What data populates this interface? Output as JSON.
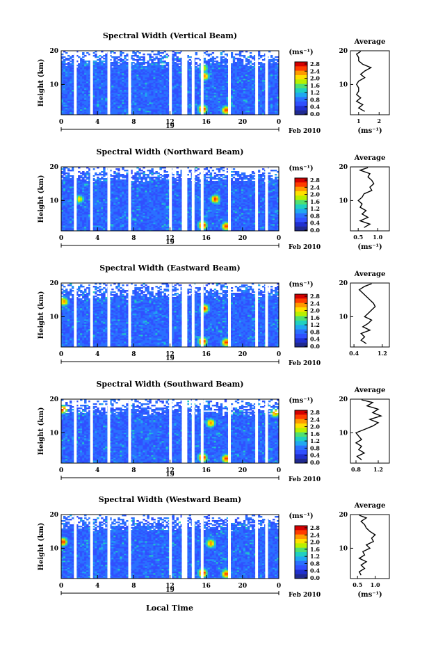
{
  "figure": {
    "xlabel": "Local Time",
    "date_label": "Feb 2010",
    "day_label": "19",
    "colorbar_unit": "(ms⁻¹)",
    "colorbar_ticks": [
      "2.8",
      "2.4",
      "2.0",
      "1.6",
      "1.2",
      "0.8",
      "0.4",
      "0.0"
    ],
    "colorbar_colors": [
      "#d40000",
      "#ff3c00",
      "#ff9a00",
      "#ffe000",
      "#b8f000",
      "#50e070",
      "#20d0c0",
      "#20a8f0",
      "#2a70ff",
      "#3050ff",
      "#2030d0",
      "#202a90"
    ],
    "average_title": "Average",
    "average_xunit": "(ms⁻¹)"
  },
  "chart_data": [
    {
      "type": "heatmap",
      "title": "Spectral Width (Vertical Beam)",
      "ylabel": "Height (km)",
      "xlabel": "Local Time",
      "x_ticks": [
        "0",
        "4",
        "8",
        "12",
        "16",
        "20",
        "0"
      ],
      "y_ticks": [
        "20",
        "10"
      ],
      "xlim": [
        0,
        24
      ],
      "ylim": [
        1,
        20
      ],
      "colorbar": {
        "unit": "(ms⁻¹)",
        "range": [
          0.0,
          2.8
        ]
      },
      "gaps_hours": [
        1.4,
        3.2,
        5.1,
        7.4,
        11.9,
        13.3,
        13.6,
        14.4,
        15.4,
        18.4,
        21.4,
        22.5
      ],
      "hotspots": [
        {
          "t": 15.6,
          "h": 2.7,
          "level": 2.8
        },
        {
          "t": 18.2,
          "h": 2.4,
          "level": 2.6
        },
        {
          "t": 15.8,
          "h": 12.5,
          "level": 2.4
        },
        {
          "t": 15.7,
          "h": 15.0,
          "level": 2.0
        }
      ]
    },
    {
      "type": "line",
      "title": "Average",
      "xlabel": "(ms⁻¹)",
      "x_ticks": [
        "1",
        "2"
      ],
      "y_ticks": [
        "20",
        "10"
      ],
      "xlim": [
        0.6,
        2.5
      ],
      "ylim": [
        1,
        20
      ],
      "series": [
        {
          "values": [
            [
              1.3,
              2
            ],
            [
              1.0,
              3
            ],
            [
              1.2,
              4
            ],
            [
              0.9,
              5
            ],
            [
              1.1,
              6
            ],
            [
              0.9,
              7
            ],
            [
              1.0,
              8
            ],
            [
              1.0,
              9
            ],
            [
              0.9,
              10
            ],
            [
              1.0,
              11
            ],
            [
              1.3,
              12
            ],
            [
              1.1,
              13
            ],
            [
              1.3,
              14
            ],
            [
              1.6,
              15
            ],
            [
              1.2,
              16
            ],
            [
              1.0,
              17
            ],
            [
              1.0,
              18
            ],
            [
              0.9,
              19
            ],
            [
              1.1,
              19.8
            ]
          ]
        }
      ]
    },
    {
      "type": "heatmap",
      "title": "Spectral Width (Northward Beam)",
      "ylabel": "Height (km)",
      "xlabel": "Local Time",
      "x_ticks": [
        "0",
        "4",
        "8",
        "12",
        "16",
        "20",
        "0"
      ],
      "y_ticks": [
        "20",
        "10"
      ],
      "xlim": [
        0,
        24
      ],
      "ylim": [
        1,
        20
      ],
      "colorbar": {
        "unit": "(ms⁻¹)",
        "range": [
          0.0,
          2.8
        ]
      },
      "gaps_hours": [
        1.4,
        3.2,
        5.1,
        7.4,
        11.9,
        13.3,
        13.6,
        14.4,
        15.4,
        18.4,
        21.4,
        22.5
      ],
      "hotspots": [
        {
          "t": 15.6,
          "h": 2.7,
          "level": 2.8
        },
        {
          "t": 18.2,
          "h": 2.4,
          "level": 2.6
        },
        {
          "t": 17.0,
          "h": 10.5,
          "level": 2.6
        },
        {
          "t": 2.0,
          "h": 10.5,
          "level": 2.0
        }
      ]
    },
    {
      "type": "line",
      "title": "Average",
      "xlabel": "(ms⁻¹)",
      "x_ticks": [
        "0.5",
        "1.0"
      ],
      "y_ticks": [
        "20",
        "10"
      ],
      "xlim": [
        0.3,
        1.3
      ],
      "ylim": [
        1,
        20
      ],
      "series": [
        {
          "values": [
            [
              0.65,
              2
            ],
            [
              0.8,
              3
            ],
            [
              0.55,
              4
            ],
            [
              0.75,
              5
            ],
            [
              0.6,
              6
            ],
            [
              0.7,
              7
            ],
            [
              0.55,
              8
            ],
            [
              0.6,
              9
            ],
            [
              0.5,
              10
            ],
            [
              0.6,
              11
            ],
            [
              0.65,
              12
            ],
            [
              0.85,
              13
            ],
            [
              0.8,
              14
            ],
            [
              0.9,
              15
            ],
            [
              0.85,
              16
            ],
            [
              0.75,
              17
            ],
            [
              0.8,
              18
            ],
            [
              0.55,
              19
            ],
            [
              0.75,
              19.8
            ]
          ]
        }
      ]
    },
    {
      "type": "heatmap",
      "title": "Spectral Width (Eastward Beam)",
      "ylabel": "Height (km)",
      "xlabel": "Local Time",
      "x_ticks": [
        "0",
        "4",
        "8",
        "12",
        "16",
        "20",
        "0"
      ],
      "y_ticks": [
        "20",
        "10"
      ],
      "xlim": [
        0,
        24
      ],
      "ylim": [
        1,
        20
      ],
      "colorbar": {
        "unit": "(ms⁻¹)",
        "range": [
          0.0,
          2.8
        ]
      },
      "gaps_hours": [
        1.4,
        3.2,
        5.1,
        7.4,
        11.9,
        13.3,
        13.6,
        14.4,
        15.4,
        18.4,
        21.4,
        22.5
      ],
      "hotspots": [
        {
          "t": 15.6,
          "h": 2.7,
          "level": 2.8
        },
        {
          "t": 18.2,
          "h": 2.4,
          "level": 2.6
        },
        {
          "t": 15.8,
          "h": 12.5,
          "level": 2.6
        },
        {
          "t": 0.3,
          "h": 14.5,
          "level": 2.4
        }
      ]
    },
    {
      "type": "line",
      "title": "Average",
      "xlabel": "",
      "x_ticks": [
        "0.4",
        "1.2"
      ],
      "y_ticks": [
        "20",
        "10"
      ],
      "xlim": [
        0.3,
        1.4
      ],
      "ylim": [
        1,
        20
      ],
      "series": [
        {
          "values": [
            [
              0.75,
              2
            ],
            [
              0.6,
              3
            ],
            [
              0.7,
              4
            ],
            [
              0.6,
              5
            ],
            [
              0.85,
              6
            ],
            [
              0.65,
              7
            ],
            [
              0.8,
              8
            ],
            [
              0.9,
              9
            ],
            [
              0.7,
              10
            ],
            [
              0.8,
              11
            ],
            [
              0.9,
              12
            ],
            [
              1.0,
              13
            ],
            [
              0.95,
              14
            ],
            [
              0.85,
              15
            ],
            [
              0.75,
              16
            ],
            [
              0.65,
              17
            ],
            [
              0.55,
              18
            ],
            [
              0.7,
              19
            ],
            [
              0.9,
              19.8
            ]
          ]
        }
      ]
    },
    {
      "type": "heatmap",
      "title": "Spectral Width (Southward Beam)",
      "ylabel": "Height (km)",
      "xlabel": "Local Time",
      "x_ticks": [
        "0",
        "4",
        "8",
        "12",
        "16",
        "20",
        "0"
      ],
      "y_ticks": [
        "20",
        "10"
      ],
      "xlim": [
        0,
        24
      ],
      "ylim": [
        1,
        20
      ],
      "colorbar": {
        "unit": "(ms⁻¹)",
        "range": [
          0.0,
          2.8
        ]
      },
      "gaps_hours": [
        1.4,
        3.2,
        5.1,
        7.4,
        11.9,
        13.3,
        13.6,
        14.4,
        15.4,
        18.4,
        21.4,
        22.5
      ],
      "hotspots": [
        {
          "t": 15.6,
          "h": 2.7,
          "level": 2.8
        },
        {
          "t": 18.2,
          "h": 2.4,
          "level": 2.6
        },
        {
          "t": 16.5,
          "h": 13.0,
          "level": 2.4
        },
        {
          "t": 0.2,
          "h": 17.0,
          "level": 2.6
        },
        {
          "t": 23.6,
          "h": 16.0,
          "level": 2.4
        }
      ]
    },
    {
      "type": "line",
      "title": "Average",
      "xlabel": "",
      "x_ticks": [
        "0.8",
        "1.2"
      ],
      "y_ticks": [
        "20",
        "10"
      ],
      "xlim": [
        0.7,
        1.4
      ],
      "ylim": [
        1,
        20
      ],
      "series": [
        {
          "values": [
            [
              0.9,
              2
            ],
            [
              0.82,
              3
            ],
            [
              0.95,
              4
            ],
            [
              0.85,
              5
            ],
            [
              0.9,
              6
            ],
            [
              0.8,
              7
            ],
            [
              0.9,
              8
            ],
            [
              0.85,
              9
            ],
            [
              0.8,
              10
            ],
            [
              0.95,
              11
            ],
            [
              1.1,
              12
            ],
            [
              1.2,
              13
            ],
            [
              1.05,
              14
            ],
            [
              1.25,
              15
            ],
            [
              1.1,
              16
            ],
            [
              1.2,
              17
            ],
            [
              1.0,
              18
            ],
            [
              1.1,
              19
            ],
            [
              0.9,
              19.8
            ]
          ]
        }
      ]
    },
    {
      "type": "heatmap",
      "title": "Spectral Width (Westward Beam)",
      "ylabel": "Height (km)",
      "xlabel": "Local Time",
      "x_ticks": [
        "0",
        "4",
        "8",
        "12",
        "16",
        "20",
        "0"
      ],
      "y_ticks": [
        "20",
        "10"
      ],
      "xlim": [
        0,
        24
      ],
      "ylim": [
        1,
        20
      ],
      "colorbar": {
        "unit": "(ms⁻¹)",
        "range": [
          0.0,
          2.8
        ]
      },
      "gaps_hours": [
        1.4,
        3.2,
        5.1,
        7.4,
        11.9,
        13.3,
        13.6,
        14.4,
        15.4,
        18.4,
        21.4,
        22.5
      ],
      "hotspots": [
        {
          "t": 15.6,
          "h": 2.7,
          "level": 2.8
        },
        {
          "t": 18.2,
          "h": 2.4,
          "level": 2.6
        },
        {
          "t": 16.5,
          "h": 11.5,
          "level": 2.4
        },
        {
          "t": 0.2,
          "h": 12.0,
          "level": 2.6
        }
      ]
    },
    {
      "type": "line",
      "title": "Average",
      "xlabel": "(ms⁻¹)",
      "x_ticks": [
        "0.5",
        "1.0"
      ],
      "y_ticks": [
        "20",
        "10"
      ],
      "xlim": [
        0.3,
        1.4
      ],
      "ylim": [
        1,
        20
      ],
      "series": [
        {
          "values": [
            [
              0.6,
              2
            ],
            [
              0.55,
              3
            ],
            [
              0.7,
              4
            ],
            [
              0.6,
              5
            ],
            [
              0.75,
              6
            ],
            [
              0.55,
              7
            ],
            [
              0.7,
              8
            ],
            [
              0.65,
              9
            ],
            [
              0.85,
              10
            ],
            [
              0.75,
              11
            ],
            [
              0.95,
              12
            ],
            [
              0.9,
              13
            ],
            [
              1.0,
              14
            ],
            [
              0.85,
              15
            ],
            [
              0.75,
              16
            ],
            [
              0.7,
              17
            ],
            [
              0.6,
              18
            ],
            [
              0.75,
              19
            ],
            [
              0.55,
              19.8
            ]
          ]
        }
      ]
    }
  ]
}
